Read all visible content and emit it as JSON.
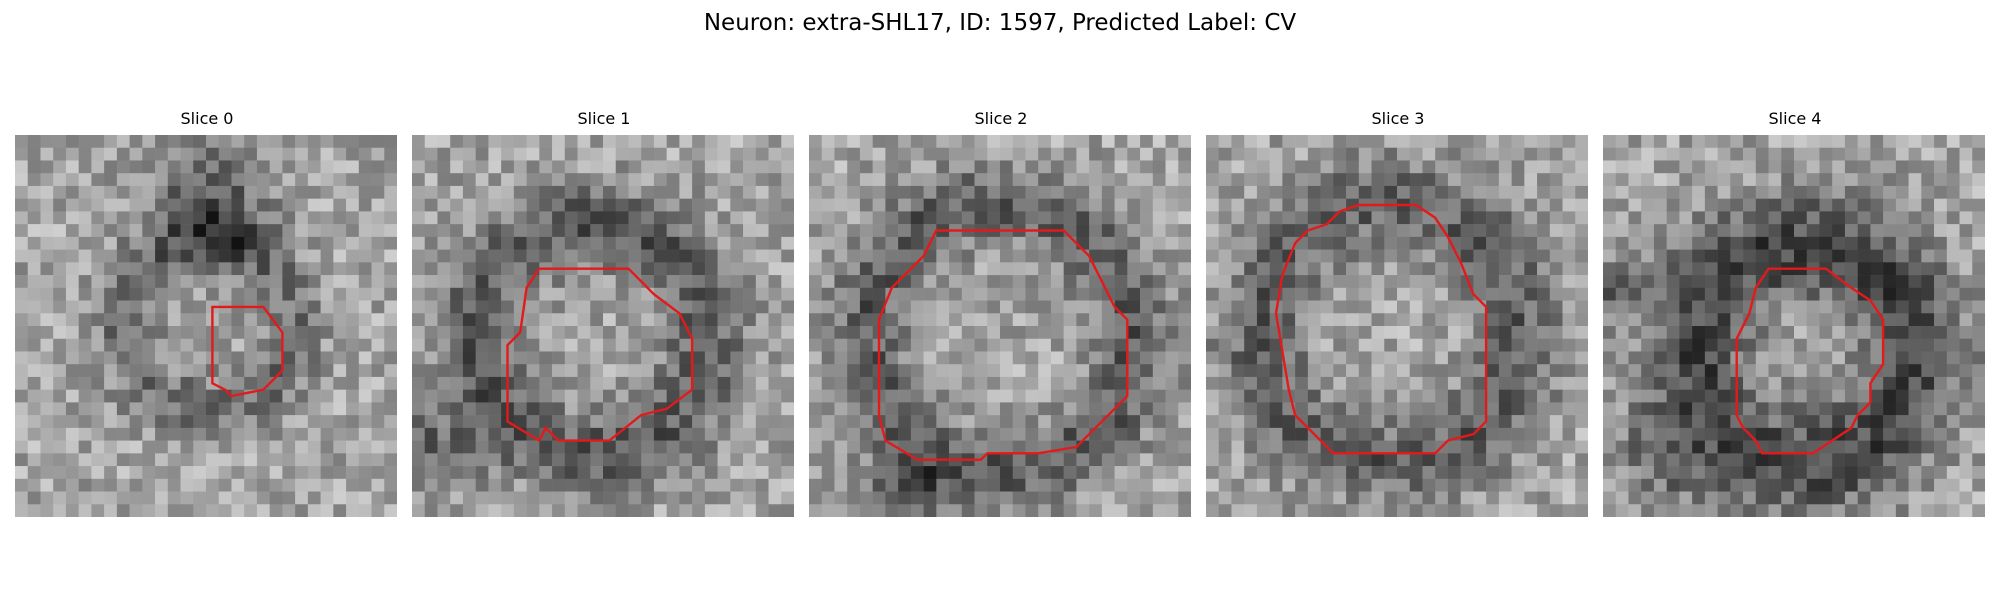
{
  "figure": {
    "title": "Neuron: extra-SHL17, ID: 1597, Predicted Label: CV"
  },
  "slices": [
    {
      "title": "Slice 0",
      "outline_color": "#e31a1c"
    },
    {
      "title": "Slice 1",
      "outline_color": "#e31a1c"
    },
    {
      "title": "Slice 2",
      "outline_color": "#e31a1c"
    },
    {
      "title": "Slice 3",
      "outline_color": "#e31a1c"
    },
    {
      "title": "Slice 4",
      "outline_color": "#e31a1c"
    }
  ]
}
